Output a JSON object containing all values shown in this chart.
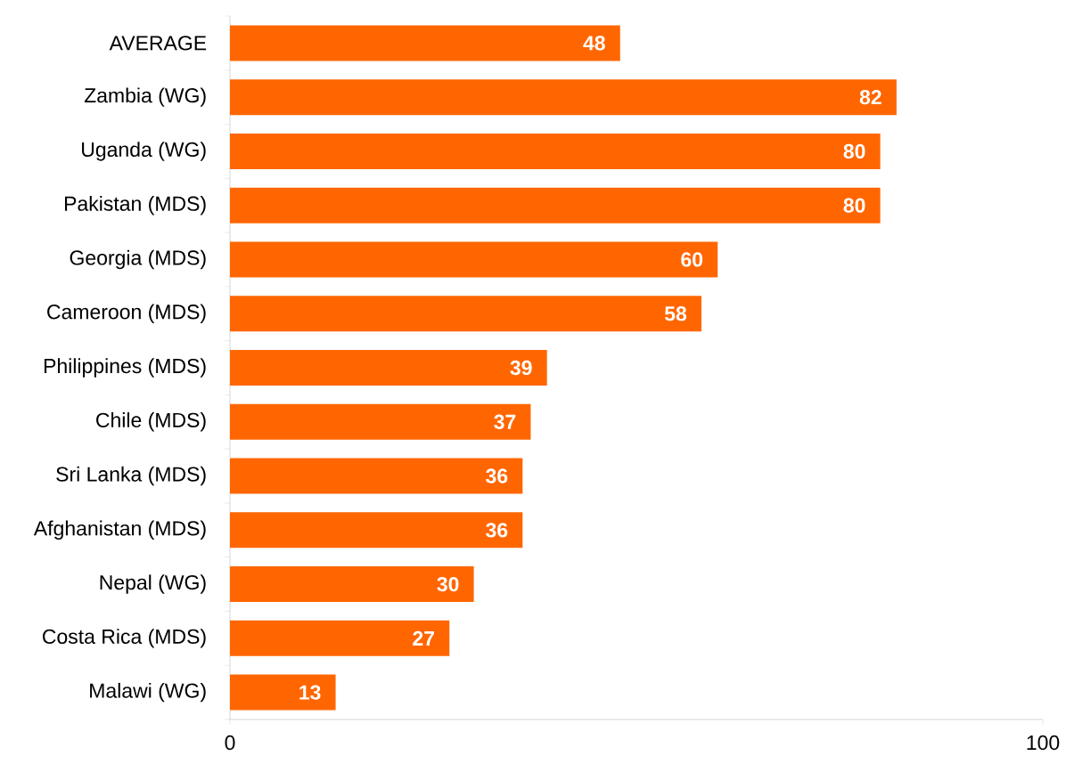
{
  "chart_data": {
    "type": "bar",
    "orientation": "horizontal",
    "categories": [
      "AVERAGE",
      "Zambia (WG)",
      "Uganda (WG)",
      "Pakistan (MDS)",
      "Georgia (MDS)",
      "Cameroon (MDS)",
      "Philippines (MDS)",
      "Chile (MDS)",
      "Sri Lanka (MDS)",
      "Afghanistan (MDS)",
      "Nepal (WG)",
      "Costa Rica (MDS)",
      "Malawi (WG)"
    ],
    "values": [
      48,
      82,
      80,
      80,
      60,
      58,
      39,
      37,
      36,
      36,
      30,
      27,
      13
    ],
    "color": "#ff6600",
    "data_labels": true,
    "xlim": [
      0,
      100
    ],
    "xticks": [
      0,
      100
    ]
  }
}
